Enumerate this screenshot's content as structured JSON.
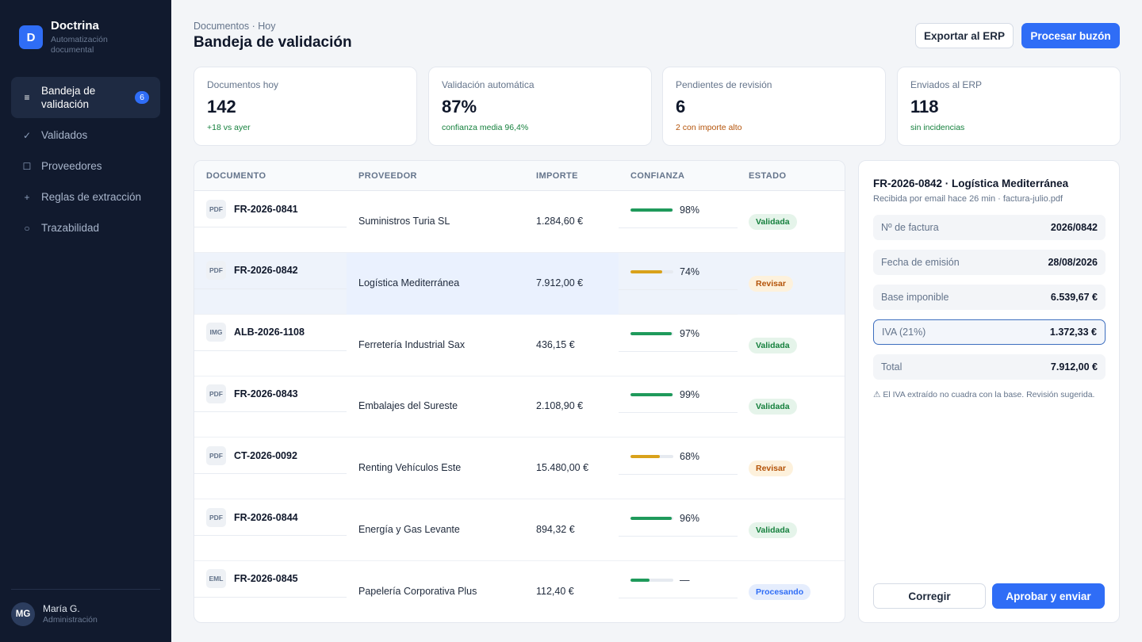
{
  "brand": {
    "initial": "D",
    "name": "Doctrina",
    "subtitle": "Automatización documental"
  },
  "sidebar": {
    "items": [
      {
        "icon": "list-icon",
        "label": "Bandeja de validación",
        "badge": "6",
        "active": true
      },
      {
        "icon": "check-icon",
        "label": "Validados"
      },
      {
        "icon": "square-icon",
        "label": "Proveedores"
      },
      {
        "icon": "plus-icon",
        "label": "Reglas de extracción"
      },
      {
        "icon": "circle-icon",
        "label": "Trazabilidad"
      }
    ],
    "user": {
      "initials": "MG",
      "name": "María G.",
      "role": "Administración"
    }
  },
  "header": {
    "breadcrumb": "Documentos · Hoy",
    "title": "Bandeja de validación",
    "export_label": "Exportar al ERP",
    "process_label": "Procesar buzón"
  },
  "kpis": [
    {
      "label": "Documentos hoy",
      "value": "142",
      "note": "+18 vs ayer",
      "tone": "green"
    },
    {
      "label": "Validación automática",
      "value": "87%",
      "note": "confianza media 96,4%",
      "tone": "green"
    },
    {
      "label": "Pendientes de revisión",
      "value": "6",
      "note": "2 con importe alto",
      "tone": "amber"
    },
    {
      "label": "Enviados al ERP",
      "value": "118",
      "note": "sin incidencias",
      "tone": "green"
    }
  ],
  "table": {
    "columns": [
      "DOCUMENTO",
      "PROVEEDOR",
      "IMPORTE",
      "CONFIANZA",
      "ESTADO"
    ],
    "rows": [
      {
        "type": "PDF",
        "id": "FR-2026-0841",
        "provider": "Suministros Turia SL",
        "amount": "1.284,60 €",
        "confidence": 0.98,
        "confidence_label": "98%",
        "status": "Validada",
        "status_kind": "ok"
      },
      {
        "type": "PDF",
        "id": "FR-2026-0842",
        "provider": "Logística Mediterránea",
        "amount": "7.912,00 €",
        "confidence": 0.74,
        "confidence_label": "74%",
        "status": "Revisar",
        "status_kind": "rev",
        "selected": true
      },
      {
        "type": "IMG",
        "id": "ALB-2026-1108",
        "provider": "Ferretería Industrial Sax",
        "amount": "436,15 €",
        "confidence": 0.97,
        "confidence_label": "97%",
        "status": "Validada",
        "status_kind": "ok"
      },
      {
        "type": "PDF",
        "id": "FR-2026-0843",
        "provider": "Embalajes del Sureste",
        "amount": "2.108,90 €",
        "confidence": 0.99,
        "confidence_label": "99%",
        "status": "Validada",
        "status_kind": "ok"
      },
      {
        "type": "PDF",
        "id": "CT-2026-0092",
        "provider": "Renting Vehículos Este",
        "amount": "15.480,00 €",
        "confidence": 0.68,
        "confidence_label": "68%",
        "status": "Revisar",
        "status_kind": "rev"
      },
      {
        "type": "PDF",
        "id": "FR-2026-0844",
        "provider": "Energía y Gas Levante",
        "amount": "894,32 €",
        "confidence": 0.96,
        "confidence_label": "96%",
        "status": "Validada",
        "status_kind": "ok"
      },
      {
        "type": "EML",
        "id": "FR-2026-0845",
        "provider": "Papelería Corporativa Plus",
        "amount": "112,40 €",
        "confidence": 0.45,
        "confidence_label": "—",
        "status": "Procesando",
        "status_kind": "proc"
      }
    ]
  },
  "detail": {
    "title": "FR-2026-0842 · Logística Mediterránea",
    "subtitle": "Recibida por email hace 26 min · factura-julio.pdf",
    "fields": [
      {
        "label": "Nº de factura",
        "value": "2026/0842"
      },
      {
        "label": "Fecha de emisión",
        "value": "28/08/2026"
      },
      {
        "label": "Base imponible",
        "value": "6.539,67 €"
      },
      {
        "label": "IVA (21%)",
        "value": "1.372,33 €",
        "focused": true
      },
      {
        "label": "Total",
        "value": "7.912,00 €"
      }
    ],
    "warning": "⚠ El IVA extraído no cuadra con la base. Revisión sugerida.",
    "correct_label": "Corregir",
    "approve_label": "Aprobar y enviar"
  },
  "colors": {
    "accent": "#2f6df6",
    "sidebar": "#111a2e",
    "bar_high": "#1f9a5b",
    "bar_mid": "#d9a21b",
    "bar_low": "#1f9a5b"
  }
}
